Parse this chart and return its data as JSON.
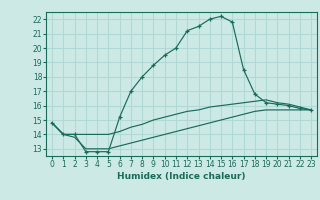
{
  "xlabel": "Humidex (Indice chaleur)",
  "background_color": "#cce9e5",
  "grid_color": "#b0d8d4",
  "line_color": "#1a6b5a",
  "xlim": [
    -0.5,
    23.5
  ],
  "ylim": [
    12.5,
    22.5
  ],
  "xticks": [
    0,
    1,
    2,
    3,
    4,
    5,
    6,
    7,
    8,
    9,
    10,
    11,
    12,
    13,
    14,
    15,
    16,
    17,
    18,
    19,
    20,
    21,
    22,
    23
  ],
  "yticks": [
    13,
    14,
    15,
    16,
    17,
    18,
    19,
    20,
    21,
    22
  ],
  "line1_x": [
    0,
    1,
    2,
    3,
    4,
    5,
    6,
    7,
    8,
    9,
    10,
    11,
    12,
    13,
    14,
    15,
    16,
    17,
    18,
    19,
    20,
    21,
    22,
    23
  ],
  "line1_y": [
    14.8,
    14.0,
    14.0,
    12.8,
    12.8,
    12.8,
    15.2,
    17.0,
    18.0,
    18.8,
    19.5,
    20.0,
    21.2,
    21.5,
    22.0,
    22.2,
    21.8,
    18.5,
    16.8,
    16.2,
    16.1,
    16.0,
    15.8,
    15.7
  ],
  "line2_x": [
    0,
    1,
    2,
    3,
    4,
    5,
    6,
    7,
    8,
    9,
    10,
    11,
    12,
    13,
    14,
    15,
    16,
    17,
    18,
    19,
    20,
    21,
    22,
    23
  ],
  "line2_y": [
    14.8,
    14.0,
    14.0,
    14.0,
    14.0,
    14.0,
    14.2,
    14.5,
    14.7,
    15.0,
    15.2,
    15.4,
    15.6,
    15.7,
    15.9,
    16.0,
    16.1,
    16.2,
    16.3,
    16.4,
    16.2,
    16.1,
    15.9,
    15.7
  ],
  "line3_x": [
    0,
    1,
    2,
    3,
    4,
    5,
    6,
    7,
    8,
    9,
    10,
    11,
    12,
    13,
    14,
    15,
    16,
    17,
    18,
    19,
    20,
    21,
    22,
    23
  ],
  "line3_y": [
    14.8,
    14.0,
    13.8,
    13.0,
    13.0,
    13.0,
    13.2,
    13.4,
    13.6,
    13.8,
    14.0,
    14.2,
    14.4,
    14.6,
    14.8,
    15.0,
    15.2,
    15.4,
    15.6,
    15.7,
    15.7,
    15.7,
    15.7,
    15.7
  ]
}
